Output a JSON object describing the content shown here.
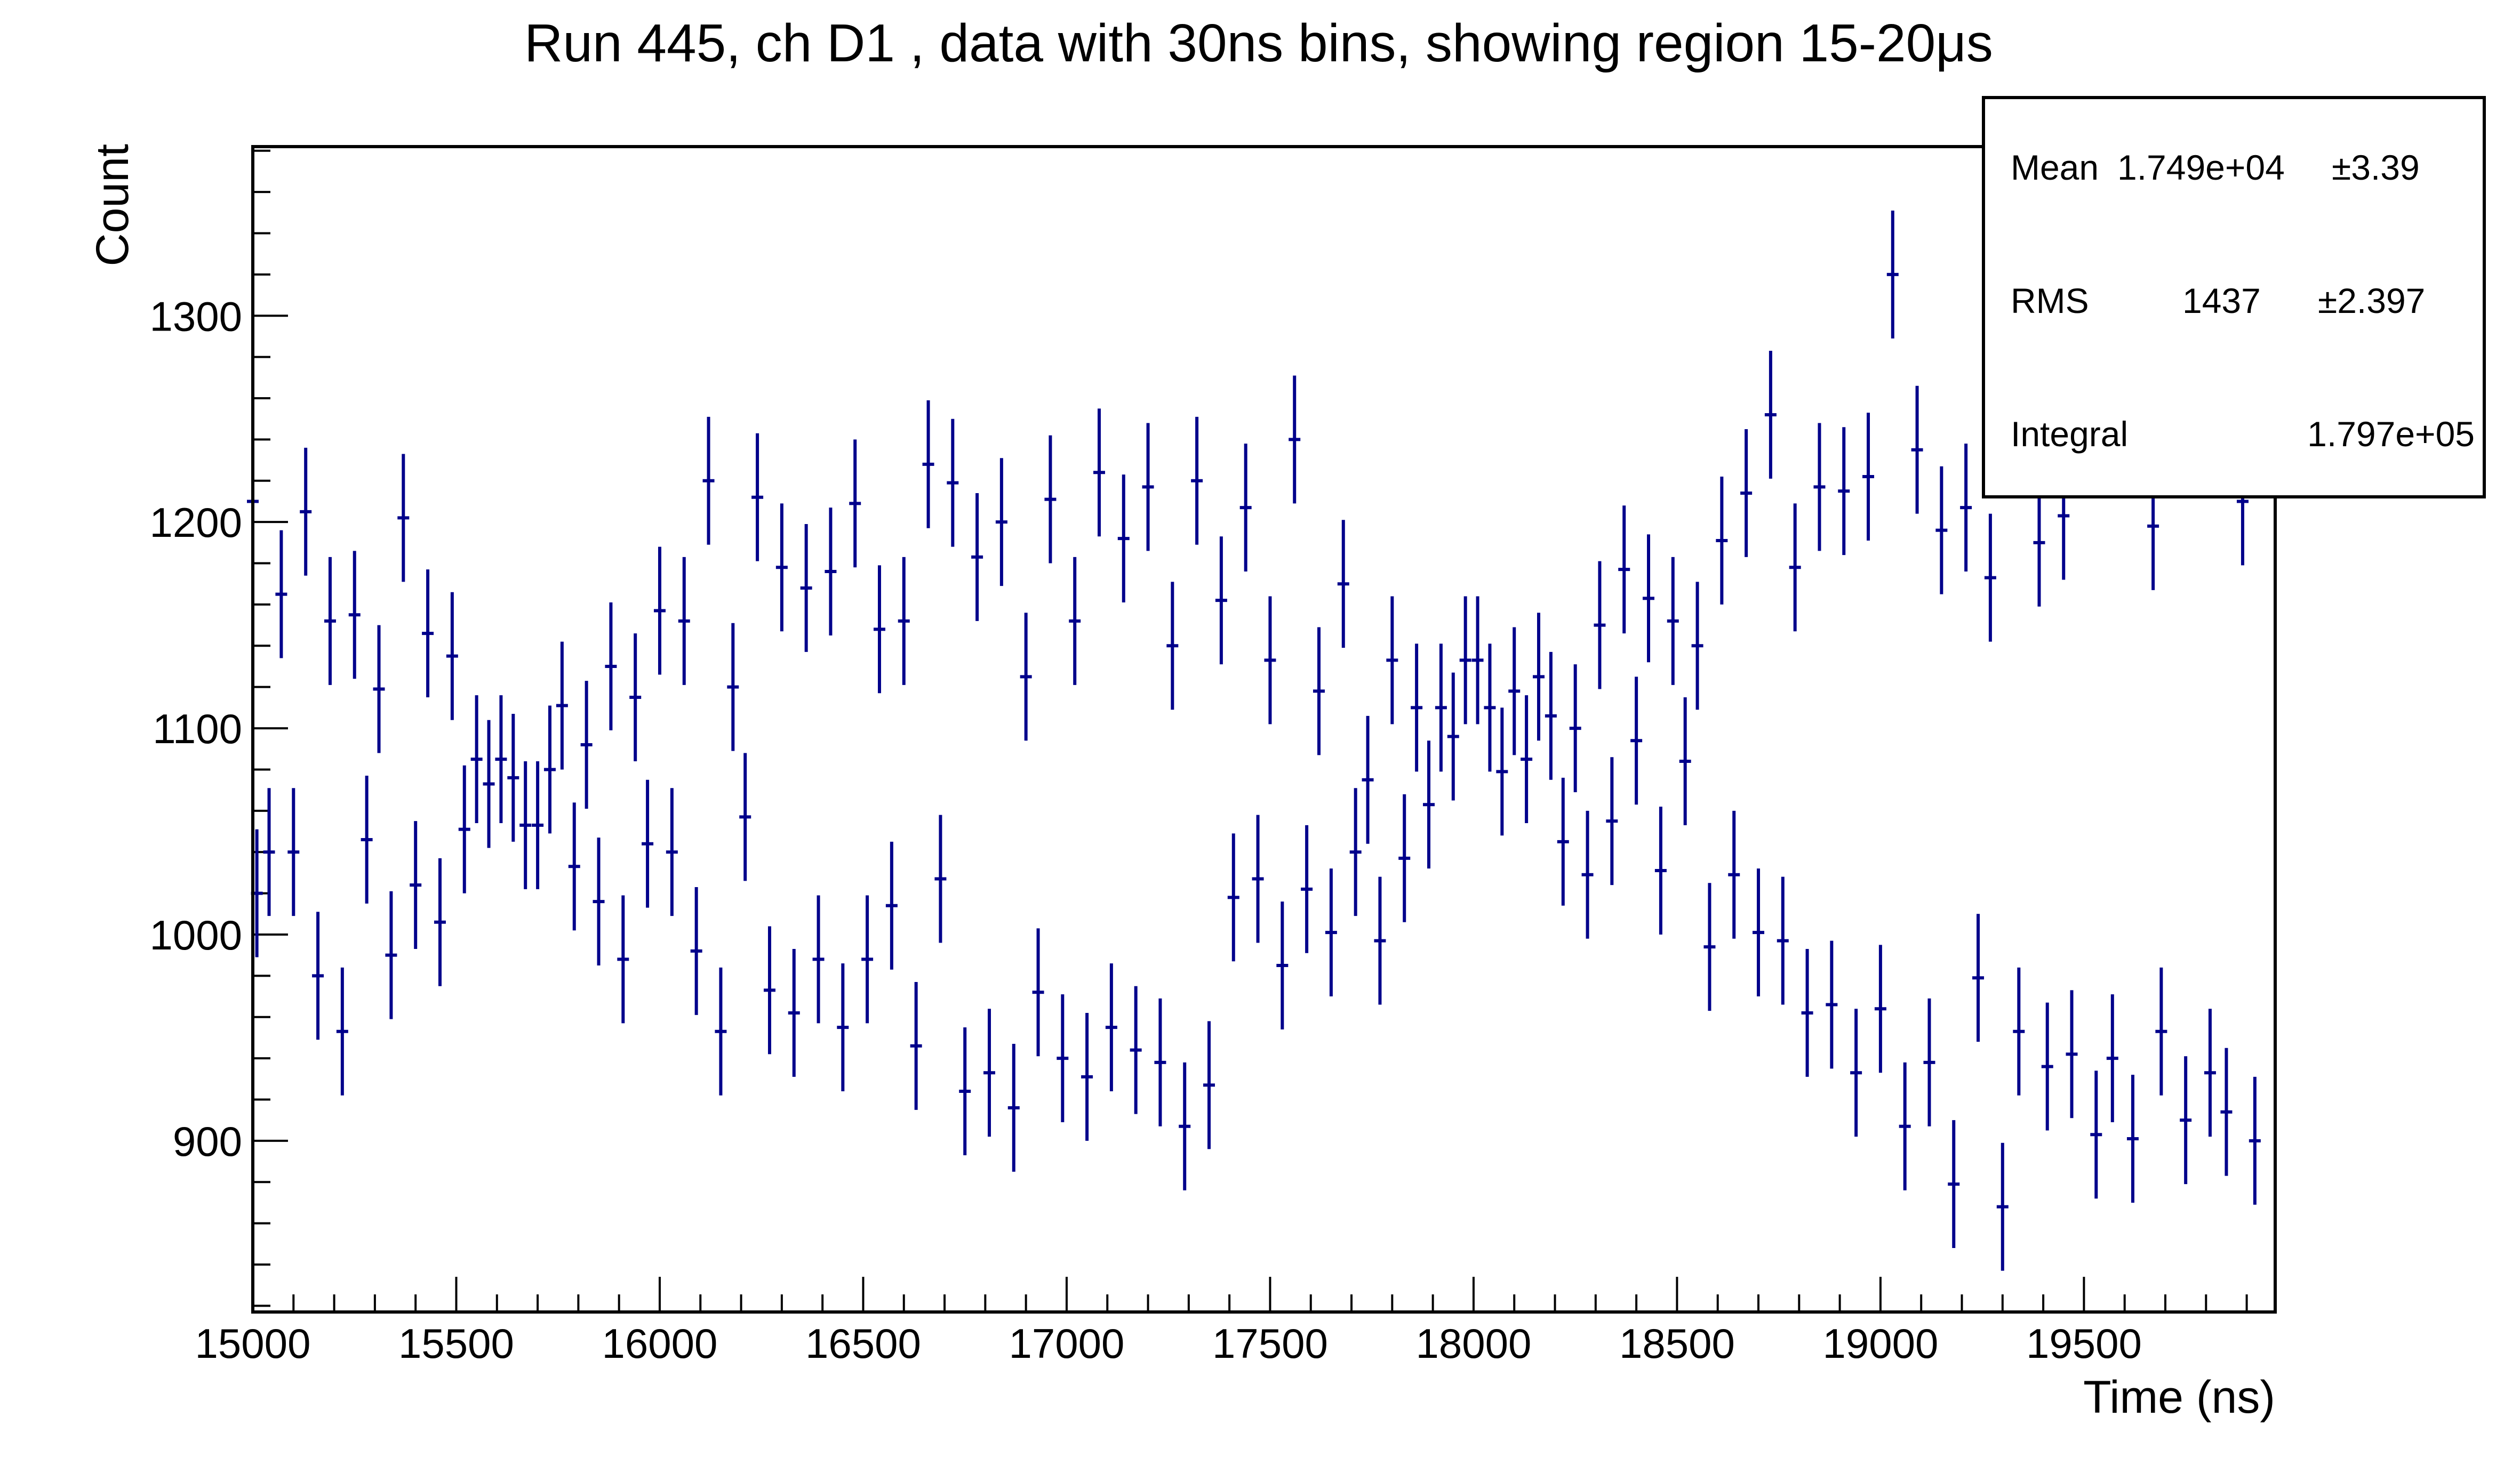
{
  "chart_data": {
    "type": "scatter",
    "title": "Run 445, ch D1 , data with 30ns bins, showing region 15-20μs",
    "xlabel": "Time (ns)",
    "ylabel": "Count",
    "xlim": [
      15000,
      19970
    ],
    "ylim": [
      817,
      1382
    ],
    "x_ticks": [
      15000,
      15500,
      16000,
      16500,
      17000,
      17500,
      18000,
      18500,
      19000,
      19500
    ],
    "y_ticks": [
      900,
      1000,
      1100,
      1200,
      1300
    ],
    "grid": false,
    "marker_color": "#00008b",
    "series": [
      {
        "points": [
          {
            "x": 15000,
            "y": 1210
          },
          {
            "x": 15010,
            "y": 1020
          },
          {
            "x": 15040,
            "y": 1040
          },
          {
            "x": 15070,
            "y": 1165
          },
          {
            "x": 15100,
            "y": 1040
          },
          {
            "x": 15130,
            "y": 1205
          },
          {
            "x": 15160,
            "y": 980
          },
          {
            "x": 15190,
            "y": 1152
          },
          {
            "x": 15220,
            "y": 953
          },
          {
            "x": 15250,
            "y": 1155
          },
          {
            "x": 15280,
            "y": 1046
          },
          {
            "x": 15310,
            "y": 1119
          },
          {
            "x": 15340,
            "y": 990
          },
          {
            "x": 15370,
            "y": 1202
          },
          {
            "x": 15400,
            "y": 1024
          },
          {
            "x": 15430,
            "y": 1146
          },
          {
            "x": 15460,
            "y": 1006
          },
          {
            "x": 15490,
            "y": 1135
          },
          {
            "x": 15520,
            "y": 1051
          },
          {
            "x": 15550,
            "y": 1085
          },
          {
            "x": 15580,
            "y": 1073
          },
          {
            "x": 15610,
            "y": 1085
          },
          {
            "x": 15640,
            "y": 1076
          },
          {
            "x": 15670,
            "y": 1053
          },
          {
            "x": 15700,
            "y": 1053
          },
          {
            "x": 15730,
            "y": 1080
          },
          {
            "x": 15760,
            "y": 1111
          },
          {
            "x": 15790,
            "y": 1033
          },
          {
            "x": 15820,
            "y": 1092
          },
          {
            "x": 15850,
            "y": 1016
          },
          {
            "x": 15880,
            "y": 1130
          },
          {
            "x": 15910,
            "y": 988
          },
          {
            "x": 15940,
            "y": 1115
          },
          {
            "x": 15970,
            "y": 1044
          },
          {
            "x": 16000,
            "y": 1157
          },
          {
            "x": 16030,
            "y": 1040
          },
          {
            "x": 16060,
            "y": 1152
          },
          {
            "x": 16090,
            "y": 992
          },
          {
            "x": 16120,
            "y": 1220
          },
          {
            "x": 16150,
            "y": 953
          },
          {
            "x": 16180,
            "y": 1120
          },
          {
            "x": 16210,
            "y": 1057
          },
          {
            "x": 16240,
            "y": 1212
          },
          {
            "x": 16270,
            "y": 973
          },
          {
            "x": 16300,
            "y": 1178
          },
          {
            "x": 16330,
            "y": 962
          },
          {
            "x": 16360,
            "y": 1168
          },
          {
            "x": 16390,
            "y": 988
          },
          {
            "x": 16420,
            "y": 1176
          },
          {
            "x": 16450,
            "y": 955
          },
          {
            "x": 16480,
            "y": 1209
          },
          {
            "x": 16510,
            "y": 988
          },
          {
            "x": 16540,
            "y": 1148
          },
          {
            "x": 16570,
            "y": 1014
          },
          {
            "x": 16600,
            "y": 1152
          },
          {
            "x": 16630,
            "y": 946
          },
          {
            "x": 16660,
            "y": 1228
          },
          {
            "x": 16690,
            "y": 1027
          },
          {
            "x": 16720,
            "y": 1219
          },
          {
            "x": 16750,
            "y": 924
          },
          {
            "x": 16780,
            "y": 1183
          },
          {
            "x": 16810,
            "y": 933
          },
          {
            "x": 16840,
            "y": 1200
          },
          {
            "x": 16870,
            "y": 916
          },
          {
            "x": 16900,
            "y": 1125
          },
          {
            "x": 16930,
            "y": 972
          },
          {
            "x": 16960,
            "y": 1211
          },
          {
            "x": 16990,
            "y": 940
          },
          {
            "x": 17020,
            "y": 1152
          },
          {
            "x": 17050,
            "y": 931
          },
          {
            "x": 17080,
            "y": 1224
          },
          {
            "x": 17110,
            "y": 955
          },
          {
            "x": 17140,
            "y": 1192
          },
          {
            "x": 17170,
            "y": 944
          },
          {
            "x": 17200,
            "y": 1217
          },
          {
            "x": 17230,
            "y": 938
          },
          {
            "x": 17260,
            "y": 1140
          },
          {
            "x": 17290,
            "y": 907
          },
          {
            "x": 17320,
            "y": 1220
          },
          {
            "x": 17350,
            "y": 927
          },
          {
            "x": 17380,
            "y": 1162
          },
          {
            "x": 17410,
            "y": 1018
          },
          {
            "x": 17440,
            "y": 1207
          },
          {
            "x": 17470,
            "y": 1027
          },
          {
            "x": 17500,
            "y": 1133
          },
          {
            "x": 17530,
            "y": 985
          },
          {
            "x": 17560,
            "y": 1240
          },
          {
            "x": 17590,
            "y": 1022
          },
          {
            "x": 17620,
            "y": 1118
          },
          {
            "x": 17650,
            "y": 1001
          },
          {
            "x": 17680,
            "y": 1170
          },
          {
            "x": 17710,
            "y": 1040
          },
          {
            "x": 17740,
            "y": 1075
          },
          {
            "x": 17770,
            "y": 997
          },
          {
            "x": 17800,
            "y": 1133
          },
          {
            "x": 17830,
            "y": 1037
          },
          {
            "x": 17860,
            "y": 1110
          },
          {
            "x": 17890,
            "y": 1063
          },
          {
            "x": 17920,
            "y": 1110
          },
          {
            "x": 17950,
            "y": 1096
          },
          {
            "x": 17980,
            "y": 1133
          },
          {
            "x": 18010,
            "y": 1133
          },
          {
            "x": 18040,
            "y": 1110
          },
          {
            "x": 18070,
            "y": 1079
          },
          {
            "x": 18100,
            "y": 1118
          },
          {
            "x": 18130,
            "y": 1085
          },
          {
            "x": 18160,
            "y": 1125
          },
          {
            "x": 18190,
            "y": 1106
          },
          {
            "x": 18220,
            "y": 1045
          },
          {
            "x": 18250,
            "y": 1100
          },
          {
            "x": 18280,
            "y": 1029
          },
          {
            "x": 18310,
            "y": 1150
          },
          {
            "x": 18340,
            "y": 1055
          },
          {
            "x": 18370,
            "y": 1177
          },
          {
            "x": 18400,
            "y": 1094
          },
          {
            "x": 18430,
            "y": 1163
          },
          {
            "x": 18460,
            "y": 1031
          },
          {
            "x": 18490,
            "y": 1152
          },
          {
            "x": 18520,
            "y": 1084
          },
          {
            "x": 18550,
            "y": 1140
          },
          {
            "x": 18580,
            "y": 994
          },
          {
            "x": 18610,
            "y": 1191
          },
          {
            "x": 18640,
            "y": 1029
          },
          {
            "x": 18670,
            "y": 1214
          },
          {
            "x": 18700,
            "y": 1001
          },
          {
            "x": 18730,
            "y": 1252
          },
          {
            "x": 18760,
            "y": 997
          },
          {
            "x": 18790,
            "y": 1178
          },
          {
            "x": 18820,
            "y": 962
          },
          {
            "x": 18850,
            "y": 1217
          },
          {
            "x": 18880,
            "y": 966
          },
          {
            "x": 18910,
            "y": 1215
          },
          {
            "x": 18940,
            "y": 933
          },
          {
            "x": 18970,
            "y": 1222
          },
          {
            "x": 19000,
            "y": 964
          },
          {
            "x": 19030,
            "y": 1320
          },
          {
            "x": 19060,
            "y": 907
          },
          {
            "x": 19090,
            "y": 1235
          },
          {
            "x": 19120,
            "y": 938
          },
          {
            "x": 19150,
            "y": 1196
          },
          {
            "x": 19180,
            "y": 879
          },
          {
            "x": 19210,
            "y": 1207
          },
          {
            "x": 19240,
            "y": 979
          },
          {
            "x": 19270,
            "y": 1173
          },
          {
            "x": 19300,
            "y": 868
          },
          {
            "x": 19340,
            "y": 953
          },
          {
            "x": 19390,
            "y": 1190
          },
          {
            "x": 19410,
            "y": 936
          },
          {
            "x": 19450,
            "y": 1203
          },
          {
            "x": 19470,
            "y": 942
          },
          {
            "x": 19530,
            "y": 903
          },
          {
            "x": 19570,
            "y": 940
          },
          {
            "x": 19620,
            "y": 901
          },
          {
            "x": 19670,
            "y": 1198
          },
          {
            "x": 19690,
            "y": 953
          },
          {
            "x": 19750,
            "y": 910
          },
          {
            "x": 19810,
            "y": 933
          },
          {
            "x": 19850,
            "y": 914
          },
          {
            "x": 19890,
            "y": 1210
          },
          {
            "x": 19920,
            "y": 900
          }
        ],
        "err": 31
      }
    ]
  },
  "stats": {
    "mean_label": "Mean",
    "mean_value": "1.749e+04",
    "mean_err": "±3.39",
    "rms_label": "RMS",
    "rms_value": "1437",
    "rms_err": "±2.397",
    "integral_label": "Integral",
    "integral_value": "1.797e+05"
  }
}
